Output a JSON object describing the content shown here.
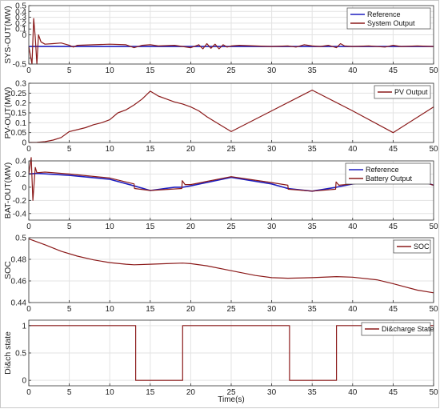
{
  "chart_data": [
    {
      "type": "line",
      "id": "sys",
      "ylabel": "SYS-OUT(MW)",
      "xlim": [
        0,
        50
      ],
      "ylim": [
        -0.5,
        0.5
      ],
      "xticks": [
        "0",
        "5",
        "10",
        "15",
        "20",
        "25",
        "30",
        "35",
        "40",
        "45",
        "50"
      ],
      "yticks": [
        "-0.5",
        "",
        "0",
        "0.1",
        "0.2",
        "0.3",
        "0.4",
        "0.5"
      ],
      "ytick_values": [
        -0.5,
        -0.4,
        0,
        0.1,
        0.2,
        0.3,
        0.4,
        0.5
      ],
      "grid": true,
      "legend_position": "top-right",
      "series": [
        {
          "name": "Reference",
          "color": "#1f1fbf",
          "x": [
            0,
            0.5,
            1.0,
            1.5,
            2,
            50
          ],
          "y": [
            -0.2,
            -0.2,
            -0.2,
            -0.2,
            -0.2,
            -0.2
          ]
        },
        {
          "name": "System Output",
          "color": "#8b1a1a",
          "x": [
            0,
            0.4,
            0.6,
            0.8,
            1.0,
            1.2,
            1.5,
            2,
            3,
            4,
            5,
            5.5,
            6,
            8,
            10,
            12,
            13,
            14,
            15,
            16,
            18,
            19,
            20,
            21,
            21.5,
            22,
            22.5,
            23,
            23.5,
            24,
            24.5,
            25,
            26,
            28,
            30,
            32,
            33,
            34,
            35,
            36,
            37,
            38,
            38.5,
            39,
            40,
            42,
            44,
            45,
            46,
            48,
            50
          ],
          "y": [
            -0.2,
            -0.5,
            0.28,
            -0.05,
            -0.5,
            0.0,
            -0.12,
            -0.16,
            -0.15,
            -0.14,
            -0.18,
            -0.21,
            -0.18,
            -0.17,
            -0.16,
            -0.17,
            -0.22,
            -0.18,
            -0.17,
            -0.19,
            -0.18,
            -0.2,
            -0.22,
            -0.17,
            -0.24,
            -0.15,
            -0.23,
            -0.16,
            -0.24,
            -0.17,
            -0.21,
            -0.19,
            -0.18,
            -0.19,
            -0.2,
            -0.19,
            -0.21,
            -0.17,
            -0.19,
            -0.2,
            -0.18,
            -0.22,
            -0.15,
            -0.19,
            -0.2,
            -0.19,
            -0.21,
            -0.18,
            -0.2,
            -0.19,
            -0.2
          ]
        }
      ]
    },
    {
      "type": "line",
      "id": "pv",
      "ylabel": "PV-OUT(MW)",
      "xlim": [
        0,
        50
      ],
      "ylim": [
        0,
        0.3
      ],
      "xticks": [
        "0",
        "5",
        "10",
        "15",
        "20",
        "25",
        "30",
        "35",
        "40",
        "45",
        "50"
      ],
      "yticks": [
        "0",
        "0.05",
        "0.1",
        "0.15",
        "0.2",
        "0.25",
        "0.3"
      ],
      "ytick_values": [
        0,
        0.05,
        0.1,
        0.15,
        0.2,
        0.25,
        0.3
      ],
      "grid": true,
      "legend_position": "top-right",
      "series": [
        {
          "name": "PV Output",
          "color": "#8b1a1a",
          "x": [
            0,
            1,
            2,
            3,
            4,
            5,
            6,
            7,
            8,
            9,
            10,
            11,
            12,
            13,
            14,
            15,
            16,
            17,
            18,
            19,
            20,
            21,
            22,
            23,
            24,
            25,
            30,
            35,
            40,
            45,
            50
          ],
          "y": [
            0.0,
            0.001,
            0.004,
            0.012,
            0.025,
            0.055,
            0.065,
            0.075,
            0.09,
            0.1,
            0.115,
            0.15,
            0.165,
            0.19,
            0.22,
            0.26,
            0.235,
            0.22,
            0.205,
            0.195,
            0.18,
            0.16,
            0.13,
            0.105,
            0.08,
            0.055,
            0.16,
            0.265,
            0.16,
            0.05,
            0.18
          ]
        }
      ]
    },
    {
      "type": "line",
      "id": "bat",
      "ylabel": "BAT-OUT(MW)",
      "xlim": [
        0,
        50
      ],
      "ylim": [
        -0.5,
        0.4
      ],
      "xticks": [
        "0",
        "5",
        "10",
        "15",
        "20",
        "25",
        "30",
        "35",
        "40",
        "45",
        "50"
      ],
      "yticks": [
        "-0.4",
        "-0.2",
        "0",
        "0.2",
        "0.4"
      ],
      "ytick_values": [
        -0.4,
        -0.2,
        0,
        0.2,
        0.4
      ],
      "grid": true,
      "legend_position": "top-right",
      "series": [
        {
          "name": "Reference",
          "color": "#1f1fbf",
          "x": [
            0,
            1,
            5,
            10,
            13,
            15,
            18,
            19,
            20,
            25,
            30,
            32,
            35,
            38,
            40,
            45,
            48,
            50
          ],
          "y": [
            0.2,
            0.21,
            0.18,
            0.12,
            0.02,
            -0.05,
            0.0,
            0.0,
            0.02,
            0.15,
            0.05,
            -0.02,
            -0.06,
            0.0,
            0.05,
            0.15,
            0.11,
            0.03
          ]
        },
        {
          "name": "Battery Output",
          "color": "#8b1a1a",
          "x": [
            0,
            0.3,
            0.5,
            0.8,
            1,
            2,
            5,
            10,
            13,
            13.05,
            15,
            18.9,
            18.95,
            19.3,
            20,
            25,
            30,
            32,
            32.05,
            35,
            37.9,
            37.95,
            38.3,
            40,
            45,
            48,
            50
          ],
          "y": [
            0.2,
            0.45,
            -0.2,
            0.3,
            0.22,
            0.23,
            0.2,
            0.14,
            0.05,
            -0.02,
            -0.05,
            -0.02,
            0.1,
            0.04,
            0.04,
            0.16,
            0.07,
            0.03,
            -0.03,
            -0.06,
            -0.03,
            0.08,
            0.03,
            0.05,
            0.15,
            0.11,
            0.03
          ]
        }
      ]
    },
    {
      "type": "line",
      "id": "soc",
      "ylabel": "SOC",
      "xlim": [
        0,
        50
      ],
      "ylim": [
        0.44,
        0.5
      ],
      "xticks": [
        "0",
        "5",
        "10",
        "15",
        "20",
        "25",
        "30",
        "35",
        "40",
        "45",
        "50"
      ],
      "yticks": [
        "0.44",
        "0.46",
        "0.48",
        "0.5"
      ],
      "ytick_values": [
        0.44,
        0.46,
        0.48,
        0.5
      ],
      "grid": true,
      "legend_position": "top-right",
      "series": [
        {
          "name": "SOC",
          "color": "#8b1a1a",
          "x": [
            0,
            2,
            4,
            6,
            8,
            10,
            12,
            13,
            15,
            17,
            19,
            20,
            22,
            25,
            28,
            30,
            32,
            35,
            38,
            40,
            43,
            45,
            48,
            50
          ],
          "y": [
            0.499,
            0.4935,
            0.4875,
            0.483,
            0.4795,
            0.477,
            0.4755,
            0.475,
            0.4755,
            0.476,
            0.4765,
            0.476,
            0.474,
            0.4695,
            0.465,
            0.463,
            0.4625,
            0.463,
            0.464,
            0.4635,
            0.461,
            0.4575,
            0.4515,
            0.449
          ]
        }
      ]
    },
    {
      "type": "line",
      "id": "dis",
      "ylabel": "Di&ch state",
      "xlim": [
        0,
        50
      ],
      "ylim": [
        -0.1,
        1.1
      ],
      "xticks": [
        "0",
        "5",
        "10",
        "15",
        "20",
        "25",
        "30",
        "35",
        "40",
        "45",
        "50"
      ],
      "yticks": [
        "0",
        "0.5",
        "1"
      ],
      "ytick_values": [
        0,
        0.5,
        1
      ],
      "grid": true,
      "legend_position": "top-right",
      "series": [
        {
          "name": "Di&charge State",
          "color": "#8b1a1a",
          "x": [
            0,
            13.2,
            13.2,
            19.0,
            19.0,
            32.2,
            32.2,
            38.0,
            38.0,
            50
          ],
          "y": [
            1,
            1,
            0,
            0,
            1,
            1,
            0,
            0,
            1,
            1
          ]
        }
      ]
    }
  ],
  "xlabel": "Time(s)"
}
